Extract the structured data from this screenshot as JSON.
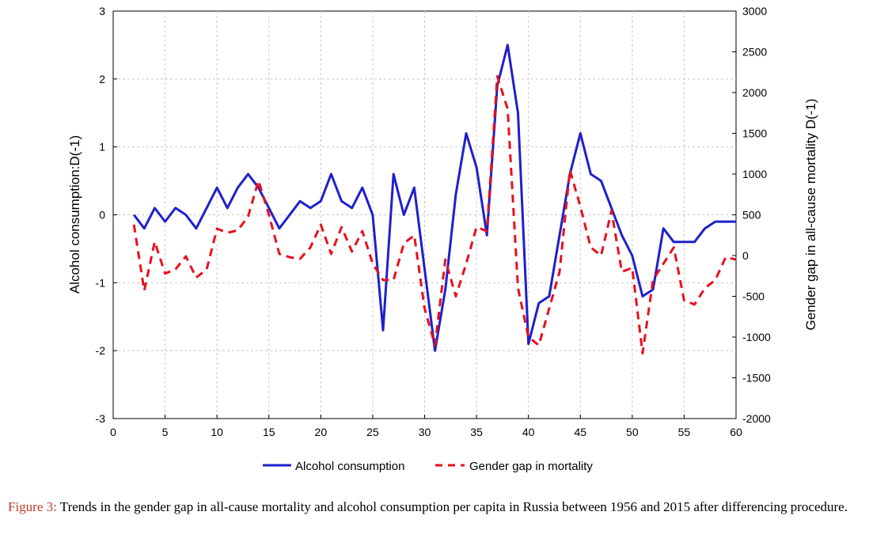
{
  "chart_data": {
    "type": "line",
    "xlim": [
      0,
      60
    ],
    "x_ticks": [
      0,
      5,
      10,
      15,
      20,
      25,
      30,
      35,
      40,
      45,
      50,
      55,
      60
    ],
    "ylabel_left": "Alcohol consumption:D(-1)",
    "ylim_left": [
      -3,
      3
    ],
    "y_ticks_left": [
      3,
      2,
      1,
      0,
      -1,
      -2,
      -3
    ],
    "ylabel_right": "Gender gap in all-cause mortality D(-1)",
    "ylim_right": [
      -2000,
      3000
    ],
    "y_ticks_right": [
      3000,
      2500,
      2000,
      1500,
      1000,
      500,
      0,
      -500,
      -1000,
      -1500,
      -2000
    ],
    "grid": true,
    "legend_position": "bottom",
    "series": [
      {
        "name": "Alcohol consumption",
        "axis": "left",
        "color": "#1f1fcc",
        "style": "solid",
        "x": [
          2,
          3,
          4,
          5,
          6,
          7,
          8,
          9,
          10,
          11,
          12,
          13,
          14,
          15,
          16,
          17,
          18,
          19,
          20,
          21,
          22,
          23,
          24,
          25,
          26,
          27,
          28,
          29,
          30,
          31,
          32,
          33,
          34,
          35,
          36,
          37,
          38,
          39,
          40,
          41,
          42,
          43,
          44,
          45,
          46,
          47,
          48,
          49,
          50,
          51,
          52,
          53,
          54,
          55,
          56,
          57,
          58,
          59,
          60
        ],
        "y": [
          0,
          -0.2,
          0.1,
          -0.1,
          0.1,
          0,
          -0.2,
          0.1,
          0.4,
          0.1,
          0.4,
          0.6,
          0.4,
          0.1,
          -0.2,
          0,
          0.2,
          0.1,
          0.2,
          0.6,
          0.2,
          0.1,
          0.4,
          0,
          -1.7,
          0.6,
          0,
          0.4,
          -0.8,
          -2,
          -1.1,
          0.3,
          1.2,
          0.7,
          -0.3,
          1.9,
          2.5,
          1.5,
          -1.9,
          -1.3,
          -1.2,
          -0.3,
          0.6,
          1.2,
          0.6,
          0.5,
          0.1,
          -0.3,
          -0.6,
          -1.2,
          -1.1,
          -0.2,
          -0.4,
          -0.4,
          -0.4,
          -0.2,
          -0.1,
          -0.1,
          -0.1
        ]
      },
      {
        "name": "Gender gap in mortality",
        "axis": "right",
        "color": "#e8101c",
        "style": "dashed",
        "x": [
          2,
          3,
          4,
          5,
          6,
          7,
          8,
          9,
          10,
          11,
          12,
          13,
          14,
          15,
          16,
          17,
          18,
          19,
          20,
          21,
          22,
          23,
          24,
          25,
          26,
          27,
          28,
          29,
          30,
          31,
          32,
          33,
          34,
          35,
          36,
          37,
          38,
          39,
          40,
          41,
          42,
          43,
          44,
          45,
          46,
          47,
          48,
          49,
          50,
          51,
          52,
          53,
          54,
          55,
          56,
          57,
          58,
          59,
          60
        ],
        "y": [
          380,
          -430,
          170,
          -220,
          -170,
          -10,
          -270,
          -170,
          330,
          280,
          310,
          480,
          920,
          500,
          20,
          -20,
          -40,
          100,
          380,
          20,
          350,
          50,
          300,
          -100,
          -300,
          -300,
          150,
          250,
          -650,
          -1100,
          -50,
          -500,
          -100,
          350,
          300,
          2200,
          1800,
          -400,
          -1000,
          -1100,
          -650,
          -200,
          1050,
          600,
          100,
          0,
          550,
          -200,
          -150,
          -1200,
          -300,
          -100,
          100,
          -550,
          -600,
          -400,
          -300,
          -20,
          -50
        ]
      }
    ]
  },
  "legend": {
    "alcohol_label": "Alcohol consumption",
    "gender_label": "Gender gap in mortality"
  },
  "caption": {
    "label": "Figure 3:",
    "text": " Trends in the gender gap in all-cause mortality and alcohol consumption per capita in Russia between 1956 and 2015 after differencing procedure."
  }
}
